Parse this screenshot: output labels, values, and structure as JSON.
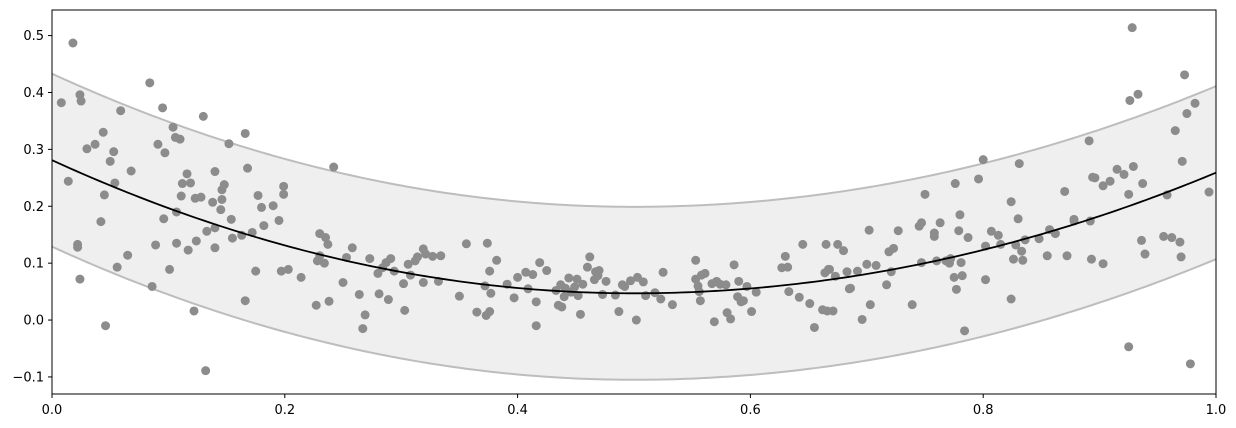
{
  "chart_data": {
    "type": "scatter",
    "title": "",
    "xlabel": "",
    "ylabel": "",
    "xlim": [
      0,
      1
    ],
    "ylim": [
      -0.13,
      0.545
    ],
    "x_ticks": [
      {
        "value": 0.0,
        "label": "0.0"
      },
      {
        "value": 0.2,
        "label": "0.2"
      },
      {
        "value": 0.4,
        "label": "0.4"
      },
      {
        "value": 0.6,
        "label": "0.6"
      },
      {
        "value": 0.8,
        "label": "0.8"
      },
      {
        "value": 1.0,
        "label": "1.0"
      }
    ],
    "y_ticks": [
      {
        "value": -0.1,
        "label": "−0.1"
      },
      {
        "value": 0.0,
        "label": "0.0"
      },
      {
        "value": 0.1,
        "label": "0.1"
      },
      {
        "value": 0.2,
        "label": "0.2"
      },
      {
        "value": 0.3,
        "label": "0.3"
      },
      {
        "value": 0.4,
        "label": "0.4"
      },
      {
        "value": 0.5,
        "label": "0.5"
      }
    ],
    "grid": false,
    "legend": "none",
    "fit": {
      "type": "line",
      "model": "quadratic",
      "vertex_x": 0.5,
      "vertex_y": 0.047,
      "value_at_0": 0.281,
      "value_at_1": 0.259,
      "band_halfwidth": 0.152
    },
    "points": [
      {
        "x": 0.008,
        "y": 0.382
      },
      {
        "x": 0.014,
        "y": 0.244
      },
      {
        "x": 0.018,
        "y": 0.487
      },
      {
        "x": 0.022,
        "y": 0.133
      },
      {
        "x": 0.022,
        "y": 0.128
      },
      {
        "x": 0.024,
        "y": 0.396
      },
      {
        "x": 0.025,
        "y": 0.385
      },
      {
        "x": 0.024,
        "y": 0.072
      },
      {
        "x": 0.03,
        "y": 0.301
      },
      {
        "x": 0.037,
        "y": 0.309
      },
      {
        "x": 0.042,
        "y": 0.173
      },
      {
        "x": 0.044,
        "y": 0.33
      },
      {
        "x": 0.045,
        "y": 0.22
      },
      {
        "x": 0.046,
        "y": -0.01
      },
      {
        "x": 0.05,
        "y": 0.279
      },
      {
        "x": 0.053,
        "y": 0.296
      },
      {
        "x": 0.054,
        "y": 0.241
      },
      {
        "x": 0.056,
        "y": 0.093
      },
      {
        "x": 0.059,
        "y": 0.368
      },
      {
        "x": 0.065,
        "y": 0.114
      },
      {
        "x": 0.068,
        "y": 0.262
      },
      {
        "x": 0.084,
        "y": 0.417
      },
      {
        "x": 0.086,
        "y": 0.059
      },
      {
        "x": 0.089,
        "y": 0.132
      },
      {
        "x": 0.091,
        "y": 0.309
      },
      {
        "x": 0.095,
        "y": 0.373
      },
      {
        "x": 0.096,
        "y": 0.178
      },
      {
        "x": 0.097,
        "y": 0.294
      },
      {
        "x": 0.101,
        "y": 0.089
      },
      {
        "x": 0.104,
        "y": 0.339
      },
      {
        "x": 0.106,
        "y": 0.321
      },
      {
        "x": 0.107,
        "y": 0.19
      },
      {
        "x": 0.107,
        "y": 0.135
      },
      {
        "x": 0.11,
        "y": 0.318
      },
      {
        "x": 0.111,
        "y": 0.218
      },
      {
        "x": 0.112,
        "y": 0.24
      },
      {
        "x": 0.116,
        "y": 0.257
      },
      {
        "x": 0.117,
        "y": 0.123
      },
      {
        "x": 0.119,
        "y": 0.241
      },
      {
        "x": 0.122,
        "y": 0.016
      },
      {
        "x": 0.123,
        "y": 0.214
      },
      {
        "x": 0.124,
        "y": 0.139
      },
      {
        "x": 0.128,
        "y": 0.216
      },
      {
        "x": 0.13,
        "y": 0.358
      },
      {
        "x": 0.132,
        "y": -0.089
      },
      {
        "x": 0.133,
        "y": 0.156
      },
      {
        "x": 0.138,
        "y": 0.207
      },
      {
        "x": 0.14,
        "y": 0.261
      },
      {
        "x": 0.14,
        "y": 0.162
      },
      {
        "x": 0.14,
        "y": 0.127
      },
      {
        "x": 0.145,
        "y": 0.194
      },
      {
        "x": 0.146,
        "y": 0.212
      },
      {
        "x": 0.146,
        "y": 0.229
      },
      {
        "x": 0.148,
        "y": 0.238
      },
      {
        "x": 0.152,
        "y": 0.31
      },
      {
        "x": 0.154,
        "y": 0.177
      },
      {
        "x": 0.155,
        "y": 0.144
      },
      {
        "x": 0.163,
        "y": 0.149
      },
      {
        "x": 0.166,
        "y": 0.034
      },
      {
        "x": 0.166,
        "y": 0.328
      },
      {
        "x": 0.168,
        "y": 0.267
      },
      {
        "x": 0.172,
        "y": 0.154
      },
      {
        "x": 0.175,
        "y": 0.086
      },
      {
        "x": 0.177,
        "y": 0.219
      },
      {
        "x": 0.18,
        "y": 0.198
      },
      {
        "x": 0.182,
        "y": 0.166
      },
      {
        "x": 0.19,
        "y": 0.201
      },
      {
        "x": 0.195,
        "y": 0.175
      },
      {
        "x": 0.197,
        "y": 0.086
      },
      {
        "x": 0.199,
        "y": 0.235
      },
      {
        "x": 0.199,
        "y": 0.221
      },
      {
        "x": 0.203,
        "y": 0.089
      },
      {
        "x": 0.214,
        "y": 0.075
      },
      {
        "x": 0.227,
        "y": 0.026
      },
      {
        "x": 0.228,
        "y": 0.104
      },
      {
        "x": 0.23,
        "y": 0.152
      },
      {
        "x": 0.23,
        "y": 0.113
      },
      {
        "x": 0.234,
        "y": 0.1
      },
      {
        "x": 0.235,
        "y": 0.145
      },
      {
        "x": 0.237,
        "y": 0.133
      },
      {
        "x": 0.238,
        "y": 0.033
      },
      {
        "x": 0.242,
        "y": 0.269
      },
      {
        "x": 0.25,
        "y": 0.066
      },
      {
        "x": 0.253,
        "y": 0.11
      },
      {
        "x": 0.258,
        "y": 0.127
      },
      {
        "x": 0.264,
        "y": 0.045
      },
      {
        "x": 0.267,
        "y": -0.015
      },
      {
        "x": 0.269,
        "y": 0.009
      },
      {
        "x": 0.273,
        "y": 0.108
      },
      {
        "x": 0.28,
        "y": 0.082
      },
      {
        "x": 0.281,
        "y": 0.046
      },
      {
        "x": 0.284,
        "y": 0.092
      },
      {
        "x": 0.287,
        "y": 0.101
      },
      {
        "x": 0.289,
        "y": 0.036
      },
      {
        "x": 0.291,
        "y": 0.108
      },
      {
        "x": 0.294,
        "y": 0.086
      },
      {
        "x": 0.302,
        "y": 0.064
      },
      {
        "x": 0.303,
        "y": 0.017
      },
      {
        "x": 0.306,
        "y": 0.098
      },
      {
        "x": 0.308,
        "y": 0.079
      },
      {
        "x": 0.312,
        "y": 0.104
      },
      {
        "x": 0.314,
        "y": 0.111
      },
      {
        "x": 0.319,
        "y": 0.066
      },
      {
        "x": 0.319,
        "y": 0.125
      },
      {
        "x": 0.321,
        "y": 0.116
      },
      {
        "x": 0.327,
        "y": 0.112
      },
      {
        "x": 0.332,
        "y": 0.068
      },
      {
        "x": 0.334,
        "y": 0.113
      },
      {
        "x": 0.35,
        "y": 0.042
      },
      {
        "x": 0.356,
        "y": 0.134
      },
      {
        "x": 0.365,
        "y": 0.014
      },
      {
        "x": 0.372,
        "y": 0.06
      },
      {
        "x": 0.373,
        "y": 0.008
      },
      {
        "x": 0.374,
        "y": 0.135
      },
      {
        "x": 0.376,
        "y": 0.086
      },
      {
        "x": 0.376,
        "y": 0.015
      },
      {
        "x": 0.377,
        "y": 0.047
      },
      {
        "x": 0.382,
        "y": 0.105
      },
      {
        "x": 0.391,
        "y": 0.063
      },
      {
        "x": 0.397,
        "y": 0.039
      },
      {
        "x": 0.4,
        "y": 0.075
      },
      {
        "x": 0.407,
        "y": 0.084
      },
      {
        "x": 0.409,
        "y": 0.055
      },
      {
        "x": 0.413,
        "y": 0.08
      },
      {
        "x": 0.416,
        "y": -0.01
      },
      {
        "x": 0.416,
        "y": 0.032
      },
      {
        "x": 0.419,
        "y": 0.101
      },
      {
        "x": 0.425,
        "y": 0.087
      },
      {
        "x": 0.433,
        "y": 0.052
      },
      {
        "x": 0.435,
        "y": 0.026
      },
      {
        "x": 0.437,
        "y": 0.062
      },
      {
        "x": 0.438,
        "y": 0.023
      },
      {
        "x": 0.44,
        "y": 0.041
      },
      {
        "x": 0.441,
        "y": 0.056
      },
      {
        "x": 0.444,
        "y": 0.074
      },
      {
        "x": 0.446,
        "y": 0.049
      },
      {
        "x": 0.449,
        "y": 0.058
      },
      {
        "x": 0.451,
        "y": 0.072
      },
      {
        "x": 0.452,
        "y": 0.043
      },
      {
        "x": 0.454,
        "y": 0.01
      },
      {
        "x": 0.456,
        "y": 0.063
      },
      {
        "x": 0.46,
        "y": 0.093
      },
      {
        "x": 0.462,
        "y": 0.111
      },
      {
        "x": 0.466,
        "y": 0.071
      },
      {
        "x": 0.467,
        "y": 0.085
      },
      {
        "x": 0.469,
        "y": 0.078
      },
      {
        "x": 0.47,
        "y": 0.087
      },
      {
        "x": 0.473,
        "y": 0.045
      },
      {
        "x": 0.476,
        "y": 0.068
      },
      {
        "x": 0.484,
        "y": 0.044
      },
      {
        "x": 0.487,
        "y": 0.015
      },
      {
        "x": 0.49,
        "y": 0.062
      },
      {
        "x": 0.492,
        "y": 0.059
      },
      {
        "x": 0.497,
        "y": 0.069
      },
      {
        "x": 0.502,
        "y": 0.0
      },
      {
        "x": 0.503,
        "y": 0.075
      },
      {
        "x": 0.508,
        "y": 0.067
      },
      {
        "x": 0.51,
        "y": 0.043
      },
      {
        "x": 0.518,
        "y": 0.048
      },
      {
        "x": 0.523,
        "y": 0.037
      },
      {
        "x": 0.525,
        "y": 0.084
      },
      {
        "x": 0.533,
        "y": 0.027
      },
      {
        "x": 0.553,
        "y": 0.105
      },
      {
        "x": 0.553,
        "y": 0.072
      },
      {
        "x": 0.555,
        "y": 0.06
      },
      {
        "x": 0.556,
        "y": 0.05
      },
      {
        "x": 0.557,
        "y": 0.034
      },
      {
        "x": 0.558,
        "y": 0.079
      },
      {
        "x": 0.561,
        "y": 0.082
      },
      {
        "x": 0.567,
        "y": 0.064
      },
      {
        "x": 0.569,
        "y": -0.003
      },
      {
        "x": 0.571,
        "y": 0.068
      },
      {
        "x": 0.574,
        "y": 0.063
      },
      {
        "x": 0.579,
        "y": 0.062
      },
      {
        "x": 0.58,
        "y": 0.013
      },
      {
        "x": 0.583,
        "y": 0.002
      },
      {
        "x": 0.586,
        "y": 0.097
      },
      {
        "x": 0.589,
        "y": 0.041
      },
      {
        "x": 0.59,
        "y": 0.068
      },
      {
        "x": 0.592,
        "y": 0.032
      },
      {
        "x": 0.594,
        "y": 0.034
      },
      {
        "x": 0.597,
        "y": 0.059
      },
      {
        "x": 0.601,
        "y": 0.015
      },
      {
        "x": 0.605,
        "y": 0.049
      },
      {
        "x": 0.627,
        "y": 0.092
      },
      {
        "x": 0.63,
        "y": 0.112
      },
      {
        "x": 0.632,
        "y": 0.093
      },
      {
        "x": 0.633,
        "y": 0.05
      },
      {
        "x": 0.642,
        "y": 0.04
      },
      {
        "x": 0.645,
        "y": 0.133
      },
      {
        "x": 0.651,
        "y": 0.029
      },
      {
        "x": 0.655,
        "y": -0.013
      },
      {
        "x": 0.662,
        "y": 0.018
      },
      {
        "x": 0.664,
        "y": 0.083
      },
      {
        "x": 0.665,
        "y": 0.133
      },
      {
        "x": 0.666,
        "y": 0.016
      },
      {
        "x": 0.667,
        "y": 0.089
      },
      {
        "x": 0.668,
        "y": 0.089
      },
      {
        "x": 0.671,
        "y": 0.016
      },
      {
        "x": 0.673,
        "y": 0.077
      },
      {
        "x": 0.675,
        "y": 0.133
      },
      {
        "x": 0.68,
        "y": 0.122
      },
      {
        "x": 0.683,
        "y": 0.085
      },
      {
        "x": 0.685,
        "y": 0.055
      },
      {
        "x": 0.686,
        "y": 0.056
      },
      {
        "x": 0.692,
        "y": 0.086
      },
      {
        "x": 0.696,
        "y": 0.001
      },
      {
        "x": 0.7,
        "y": 0.098
      },
      {
        "x": 0.702,
        "y": 0.158
      },
      {
        "x": 0.703,
        "y": 0.027
      },
      {
        "x": 0.708,
        "y": 0.096
      },
      {
        "x": 0.717,
        "y": 0.062
      },
      {
        "x": 0.719,
        "y": 0.12
      },
      {
        "x": 0.721,
        "y": 0.085
      },
      {
        "x": 0.723,
        "y": 0.126
      },
      {
        "x": 0.727,
        "y": 0.157
      },
      {
        "x": 0.739,
        "y": 0.027
      },
      {
        "x": 0.745,
        "y": 0.165
      },
      {
        "x": 0.747,
        "y": 0.101
      },
      {
        "x": 0.747,
        "y": 0.171
      },
      {
        "x": 0.75,
        "y": 0.221
      },
      {
        "x": 0.758,
        "y": 0.147
      },
      {
        "x": 0.758,
        "y": 0.153
      },
      {
        "x": 0.76,
        "y": 0.104
      },
      {
        "x": 0.763,
        "y": 0.171
      },
      {
        "x": 0.768,
        "y": 0.104
      },
      {
        "x": 0.771,
        "y": 0.1
      },
      {
        "x": 0.772,
        "y": 0.108
      },
      {
        "x": 0.775,
        "y": 0.075
      },
      {
        "x": 0.776,
        "y": 0.24
      },
      {
        "x": 0.777,
        "y": 0.054
      },
      {
        "x": 0.779,
        "y": 0.157
      },
      {
        "x": 0.78,
        "y": 0.185
      },
      {
        "x": 0.781,
        "y": 0.101
      },
      {
        "x": 0.782,
        "y": 0.078
      },
      {
        "x": 0.784,
        "y": -0.019
      },
      {
        "x": 0.787,
        "y": 0.145
      },
      {
        "x": 0.796,
        "y": 0.248
      },
      {
        "x": 0.8,
        "y": 0.282
      },
      {
        "x": 0.802,
        "y": 0.13
      },
      {
        "x": 0.802,
        "y": 0.071
      },
      {
        "x": 0.807,
        "y": 0.156
      },
      {
        "x": 0.813,
        "y": 0.149
      },
      {
        "x": 0.815,
        "y": 0.133
      },
      {
        "x": 0.824,
        "y": 0.208
      },
      {
        "x": 0.824,
        "y": 0.037
      },
      {
        "x": 0.826,
        "y": 0.107
      },
      {
        "x": 0.828,
        "y": 0.132
      },
      {
        "x": 0.83,
        "y": 0.178
      },
      {
        "x": 0.831,
        "y": 0.275
      },
      {
        "x": 0.833,
        "y": 0.121
      },
      {
        "x": 0.834,
        "y": 0.105
      },
      {
        "x": 0.836,
        "y": 0.141
      },
      {
        "x": 0.848,
        "y": 0.143
      },
      {
        "x": 0.855,
        "y": 0.113
      },
      {
        "x": 0.857,
        "y": 0.159
      },
      {
        "x": 0.862,
        "y": 0.152
      },
      {
        "x": 0.87,
        "y": 0.226
      },
      {
        "x": 0.872,
        "y": 0.113
      },
      {
        "x": 0.878,
        "y": 0.174
      },
      {
        "x": 0.878,
        "y": 0.177
      },
      {
        "x": 0.891,
        "y": 0.315
      },
      {
        "x": 0.892,
        "y": 0.174
      },
      {
        "x": 0.893,
        "y": 0.107
      },
      {
        "x": 0.894,
        "y": 0.251
      },
      {
        "x": 0.896,
        "y": 0.25
      },
      {
        "x": 0.903,
        "y": 0.099
      },
      {
        "x": 0.903,
        "y": 0.236
      },
      {
        "x": 0.909,
        "y": 0.244
      },
      {
        "x": 0.915,
        "y": 0.265
      },
      {
        "x": 0.921,
        "y": 0.256
      },
      {
        "x": 0.925,
        "y": 0.221
      },
      {
        "x": 0.925,
        "y": -0.047
      },
      {
        "x": 0.926,
        "y": 0.386
      },
      {
        "x": 0.928,
        "y": 0.514
      },
      {
        "x": 0.929,
        "y": 0.27
      },
      {
        "x": 0.933,
        "y": 0.397
      },
      {
        "x": 0.936,
        "y": 0.14
      },
      {
        "x": 0.937,
        "y": 0.24
      },
      {
        "x": 0.939,
        "y": 0.116
      },
      {
        "x": 0.955,
        "y": 0.147
      },
      {
        "x": 0.958,
        "y": 0.22
      },
      {
        "x": 0.962,
        "y": 0.145
      },
      {
        "x": 0.965,
        "y": 0.333
      },
      {
        "x": 0.97,
        "y": 0.111
      },
      {
        "x": 0.971,
        "y": 0.279
      },
      {
        "x": 0.973,
        "y": 0.431
      },
      {
        "x": 0.975,
        "y": 0.363
      },
      {
        "x": 0.978,
        "y": -0.077
      },
      {
        "x": 0.982,
        "y": 0.381
      },
      {
        "x": 0.969,
        "y": 0.137
      },
      {
        "x": 0.994,
        "y": 0.225
      }
    ]
  },
  "colors": {
    "points": "#8c8c8c",
    "fit_line": "#000000",
    "band_fill": "#efefef",
    "band_edge": "#bdbdbd",
    "axes": "#000000",
    "background": "#ffffff"
  }
}
